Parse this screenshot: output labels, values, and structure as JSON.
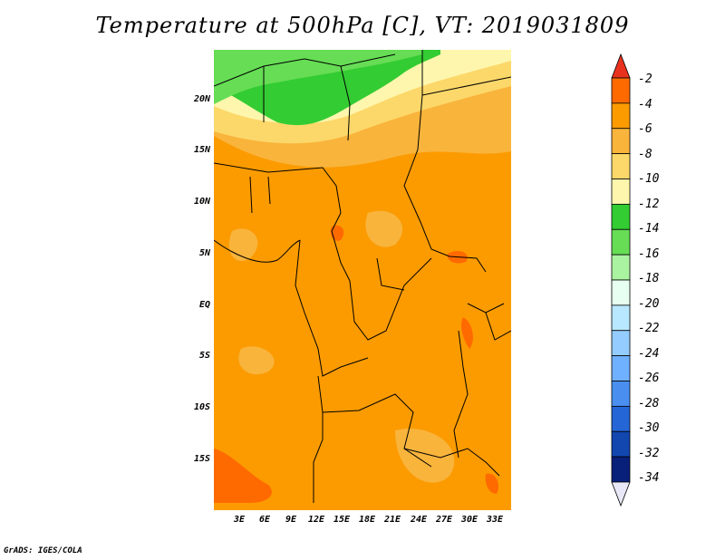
{
  "title": "Temperature at 500hPa [C], VT: 2019031809",
  "footer": "GrADS: IGES/COLA",
  "map": {
    "lat_labels": [
      "20N",
      "15N",
      "10N",
      "5N",
      "EQ",
      "5S",
      "10S",
      "15S"
    ],
    "lon_labels": [
      "3E",
      "6E",
      "9E",
      "12E",
      "15E",
      "18E",
      "21E",
      "24E",
      "27E",
      "30E",
      "33E"
    ]
  },
  "colorbar": {
    "labels": [
      "-2",
      "-4",
      "-6",
      "-8",
      "-10",
      "-12",
      "-14",
      "-16",
      "-18",
      "-20",
      "-22",
      "-24",
      "-26",
      "-28",
      "-30",
      "-32",
      "-34"
    ],
    "colors": [
      "#ee4b1f",
      "#ff6a00",
      "#fb9b00",
      "#f9b43c",
      "#fcd86a",
      "#fff6ad",
      "#33cc33",
      "#66dd55",
      "#aaf3a0",
      "#e6fff0",
      "#b8e8ff",
      "#94ccff",
      "#6fb0ff",
      "#4a8ff0",
      "#2566d6",
      "#1247b0",
      "#08207a",
      "#0a0a60"
    ],
    "top_arrow_color": "#e8321e",
    "bottom_arrow_color": "#e8e8f8"
  }
}
